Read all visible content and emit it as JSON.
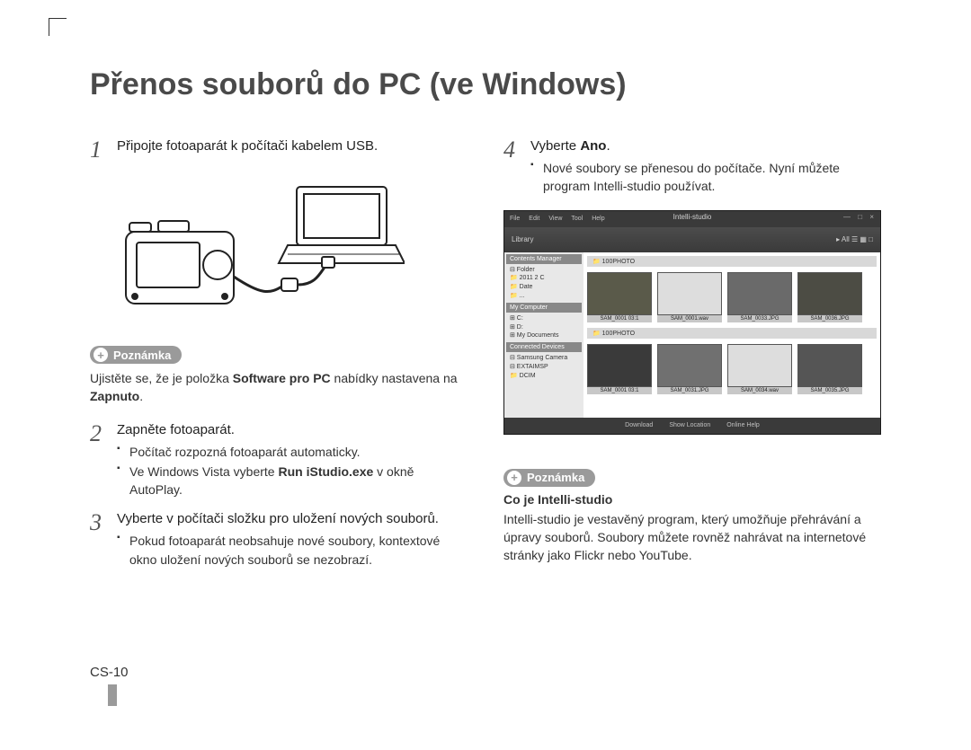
{
  "title": "Přenos souborů do PC (ve Windows)",
  "pageNumber": "CS-10",
  "noteLabel": "Poznámka",
  "left": {
    "step1": {
      "num": "1",
      "text": "Připojte fotoaparát k počítači kabelem USB."
    },
    "note1": {
      "pre": "Ujistěte se, že je položka ",
      "bold1": "Software pro PC",
      "mid": " nabídky nastavena na ",
      "bold2": "Zapnuto",
      "post": "."
    },
    "step2": {
      "num": "2",
      "title": "Zapněte fotoaparát.",
      "b1": "Počítač rozpozná fotoaparát automaticky.",
      "b2_pre": "Ve Windows Vista vyberte ",
      "b2_bold": "Run iStudio.exe",
      "b2_post": " v okně AutoPlay."
    },
    "step3": {
      "num": "3",
      "title": "Vyberte v počítači složku pro uložení nových souborů.",
      "b1": "Pokud fotoaparát neobsahuje nové soubory, kontextové okno uložení nových souborů se nezobrazí."
    }
  },
  "right": {
    "step4": {
      "num": "4",
      "title_pre": "Vyberte ",
      "title_bold": "Ano",
      "title_post": ".",
      "b1": "Nové soubory se přenesou do počítače. Nyní můžete program Intelli-studio používat."
    },
    "note2": {
      "heading": "Co je Intelli-studio",
      "text": "Intelli-studio je vestavěný program, který umožňuje přehrávání a úpravy souborů. Soubory můžete rovněž nahrávat na internetové stránky jako Flickr nebo YouTube."
    }
  },
  "illus": {
    "stroke": "#222222",
    "fill": "#ffffff"
  },
  "screenshot": {
    "appTitle": "Intelli-studio",
    "menus": [
      "File",
      "Edit",
      "View",
      "Tool",
      "Help"
    ],
    "winctl": "— □ ×",
    "toolbarLeft": "Library",
    "toolbarRight": "▸ All  ☰ ▦ □",
    "sidePanel1": "Contents Manager",
    "tree1": [
      "⊟ Folder",
      "  📁 2011 2 C",
      "  📁 Date",
      "  📁 ..."
    ],
    "sidePanel2": "My Computer",
    "tree2": [
      "⊞ C:",
      "⊞ D:",
      "⊞ My Documents"
    ],
    "sidePanel3": "Connected Devices",
    "tree3": [
      "⊟ Samsung Camera",
      "  ⊟ EXTAIMSP",
      "    📁 DCIM"
    ],
    "path1": "📁 100PHOTO",
    "path2": "📁 100PHOTO",
    "row1": [
      {
        "cap": "SAM_0001  03:1",
        "bg": "#5a5a4a"
      },
      {
        "cap": "SAM_0001.wav",
        "bg": "#dddddd"
      },
      {
        "cap": "SAM_0033.JPG",
        "bg": "#6a6a6a"
      },
      {
        "cap": "SAM_0036.JPG",
        "bg": "#4c4c44"
      }
    ],
    "row2": [
      {
        "cap": "SAM_0001  03:1",
        "bg": "#3a3a3a"
      },
      {
        "cap": "SAM_0031.JPG",
        "bg": "#707070"
      },
      {
        "cap": "SAM_0034.wav",
        "bg": "#dddddd"
      },
      {
        "cap": "SAM_0035.JPG",
        "bg": "#555555"
      }
    ],
    "status": [
      "Download",
      "Show Location",
      "Online Help"
    ]
  }
}
